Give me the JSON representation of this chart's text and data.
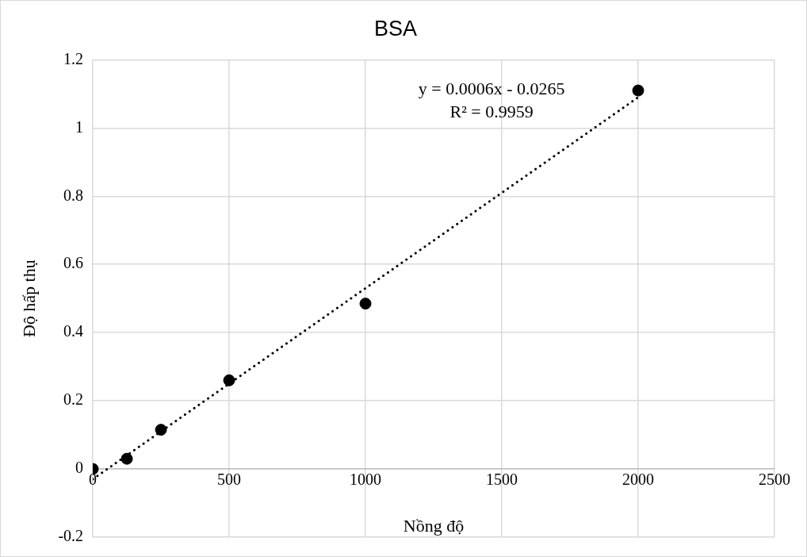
{
  "chart_data": {
    "type": "scatter",
    "title": "BSA",
    "xlabel": "Nồng độ",
    "ylabel": "Độ hấp thụ",
    "x": [
      0,
      125,
      250,
      500,
      1000,
      2000
    ],
    "series": [
      {
        "color": "#000000",
        "values": [
          0,
          0.03,
          0.115,
          0.26,
          0.485,
          1.11
        ],
        "marker": "circle"
      },
      {
        "type": "line",
        "color": "#000000",
        "x": [
          0,
          2000
        ],
        "values": [
          -0.03,
          1.09
        ],
        "line_style": "dotted",
        "marker": "none"
      }
    ],
    "annotations": [
      "y = 0.0006x - 0.0265",
      "R² = 0.9959"
    ],
    "xlim": [
      0,
      2500
    ],
    "xticks": [
      0,
      500,
      1000,
      1500,
      2000,
      2500
    ],
    "ylim": [
      -0.2,
      1.2
    ],
    "yticks": [
      -0.2,
      0,
      0.2,
      0.4,
      0.6,
      0.8,
      1,
      1.2
    ],
    "grid": true,
    "legend": false
  }
}
